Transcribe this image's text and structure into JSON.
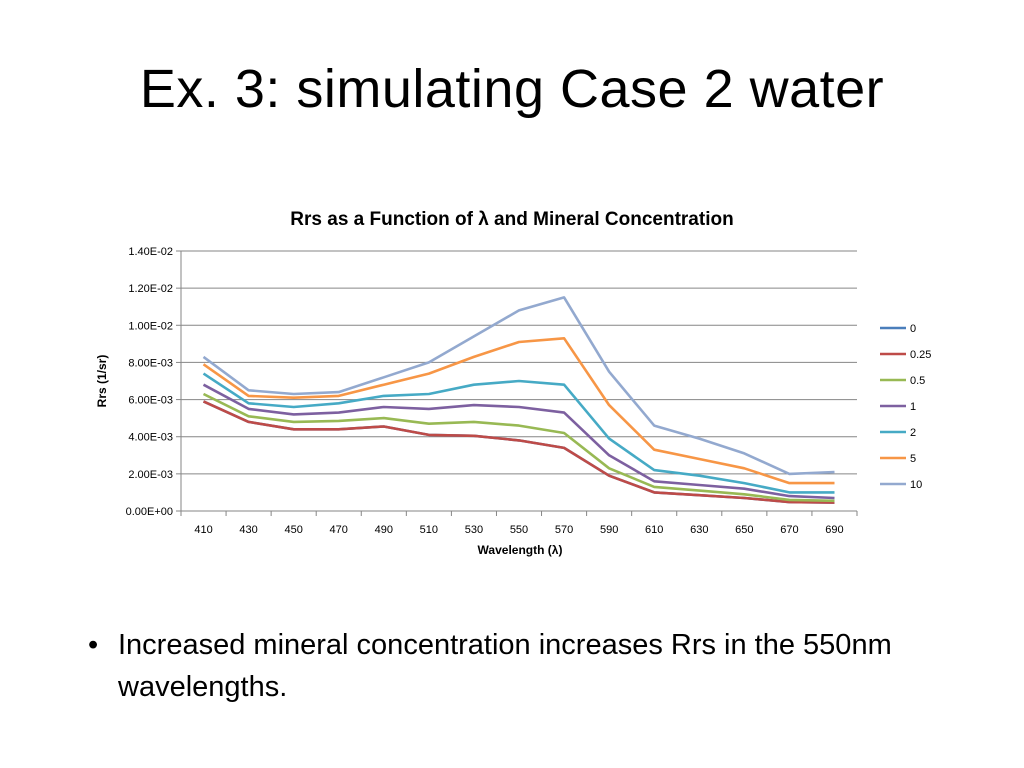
{
  "slide": {
    "title": "Ex. 3: simulating Case 2 water",
    "bullet_symbol": "•",
    "bullet_text": "Increased mineral concentration increases Rrs in the 550nm wavelengths."
  },
  "chart_data": {
    "type": "line",
    "title": "Rrs as a Function of λ and Mineral Concentration",
    "xlabel": "Wavelength (λ)",
    "ylabel": "Rrs (1/sr)",
    "x": [
      410,
      430,
      450,
      470,
      490,
      510,
      530,
      550,
      570,
      590,
      610,
      630,
      650,
      670,
      690
    ],
    "ylim": [
      0,
      0.014
    ],
    "yticks": [
      "0.00E+00",
      "2.00E-03",
      "4.00E-03",
      "6.00E-03",
      "8.00E-03",
      "1.00E-02",
      "1.20E-02",
      "1.40E-02"
    ],
    "grid": true,
    "legend_position": "right",
    "series": [
      {
        "name": "0",
        "color": "#4a7ebb",
        "values": [
          0.0059,
          0.0048,
          0.0044,
          0.0044,
          0.00455,
          0.0041,
          0.00405,
          0.0038,
          0.0034,
          0.0019,
          0.001,
          0.00085,
          0.0007,
          0.00048,
          0.00045
        ]
      },
      {
        "name": "0.25",
        "color": "#be4b48",
        "values": [
          0.0059,
          0.0048,
          0.0044,
          0.0044,
          0.00455,
          0.0041,
          0.00405,
          0.0038,
          0.0034,
          0.0019,
          0.001,
          0.00085,
          0.0007,
          0.00048,
          0.00045
        ]
      },
      {
        "name": "0.5",
        "color": "#98b954",
        "values": [
          0.0063,
          0.0051,
          0.0048,
          0.00485,
          0.005,
          0.0047,
          0.0048,
          0.0046,
          0.0042,
          0.0023,
          0.0013,
          0.0011,
          0.0009,
          0.0006,
          0.00055
        ]
      },
      {
        "name": "1",
        "color": "#7d60a0",
        "values": [
          0.0068,
          0.0055,
          0.0052,
          0.0053,
          0.0056,
          0.0055,
          0.0057,
          0.0056,
          0.0053,
          0.003,
          0.0016,
          0.0014,
          0.0012,
          0.0008,
          0.0007
        ]
      },
      {
        "name": "2",
        "color": "#46aac5",
        "values": [
          0.0074,
          0.0058,
          0.0056,
          0.0058,
          0.0062,
          0.0063,
          0.0068,
          0.007,
          0.0068,
          0.0039,
          0.0022,
          0.0019,
          0.0015,
          0.001,
          0.001
        ]
      },
      {
        "name": "5",
        "color": "#f79646",
        "values": [
          0.0079,
          0.0062,
          0.0061,
          0.0062,
          0.0068,
          0.0074,
          0.0083,
          0.0091,
          0.0093,
          0.0057,
          0.0033,
          0.0028,
          0.0023,
          0.0015,
          0.0015
        ]
      },
      {
        "name": "10",
        "color": "#93a9cf",
        "values": [
          0.0083,
          0.0065,
          0.0063,
          0.0064,
          0.0072,
          0.008,
          0.0094,
          0.0108,
          0.0115,
          0.0075,
          0.0046,
          0.0039,
          0.0031,
          0.002,
          0.0021
        ]
      }
    ]
  }
}
